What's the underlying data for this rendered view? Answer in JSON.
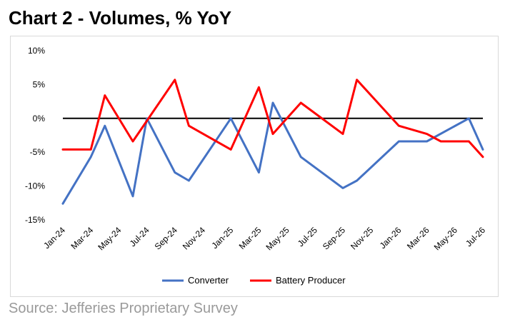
{
  "title": "Chart 2 - Volumes, % YoY",
  "source": "Source: Jefferies Proprietary Survey",
  "colors": {
    "converter": "#4472C4",
    "battery_producer": "#FF0000",
    "zero_line": "#000000",
    "frame": "#d9d9d9"
  },
  "chart_data": {
    "type": "line",
    "title": "Chart 2 - Volumes, % YoY",
    "xlabel": "",
    "ylabel": "",
    "ylim": [
      -15,
      10
    ],
    "yticks": [
      "10%",
      "5%",
      "0%",
      "-5%",
      "-10%",
      "-15%"
    ],
    "grid": false,
    "legend_position": "bottom",
    "x_tick_labels": [
      "Jan-24",
      "Mar-24",
      "May-24",
      "Jul-24",
      "Sep-24",
      "Nov-24",
      "Jan-25",
      "Mar-25",
      "May-25",
      "Jul-25",
      "Sep-25",
      "Nov-25",
      "Jan-26",
      "Mar-26",
      "May-26",
      "Jul-26"
    ],
    "x": [
      "Jan-24",
      "Feb-24",
      "Mar-24",
      "Apr-24",
      "May-24",
      "Jun-24",
      "Jul-24",
      "Aug-24",
      "Sep-24",
      "Oct-24",
      "Nov-24",
      "Dec-24",
      "Jan-25",
      "Feb-25",
      "Mar-25",
      "Apr-25",
      "May-25",
      "Jun-25",
      "Jul-25",
      "Aug-25",
      "Sep-25",
      "Oct-25",
      "Nov-25",
      "Dec-25",
      "Jan-26",
      "Feb-26",
      "Mar-26",
      "Apr-26",
      "May-26",
      "Jun-26",
      "Jul-26"
    ],
    "series": [
      {
        "name": "Converter",
        "color": "#4472C4",
        "points": [
          [
            0,
            -12.6
          ],
          [
            2,
            -5.7
          ],
          [
            3,
            -1.1
          ],
          [
            5,
            -11.5
          ],
          [
            6,
            0
          ],
          [
            8,
            -8
          ],
          [
            9,
            -9.2
          ],
          [
            12,
            0
          ],
          [
            14,
            -8
          ],
          [
            15,
            2.3
          ],
          [
            17,
            -5.7
          ],
          [
            20,
            -10.3
          ],
          [
            21,
            -9.2
          ],
          [
            24,
            -3.4
          ],
          [
            26,
            -3.4
          ],
          [
            29,
            0
          ],
          [
            30,
            -4.6
          ]
        ]
      },
      {
        "name": "Battery Producer",
        "color": "#FF0000",
        "points": [
          [
            0,
            -4.6
          ],
          [
            2,
            -4.6
          ],
          [
            3,
            3.4
          ],
          [
            5,
            -3.4
          ],
          [
            8,
            5.7
          ],
          [
            9,
            -1.1
          ],
          [
            12,
            -4.6
          ],
          [
            14,
            4.6
          ],
          [
            15,
            -2.3
          ],
          [
            17,
            2.3
          ],
          [
            20,
            -2.3
          ],
          [
            21,
            5.7
          ],
          [
            24,
            -1.1
          ],
          [
            26,
            -2.3
          ],
          [
            27,
            -3.4
          ],
          [
            29,
            -3.4
          ],
          [
            30,
            -5.7
          ]
        ]
      }
    ]
  }
}
